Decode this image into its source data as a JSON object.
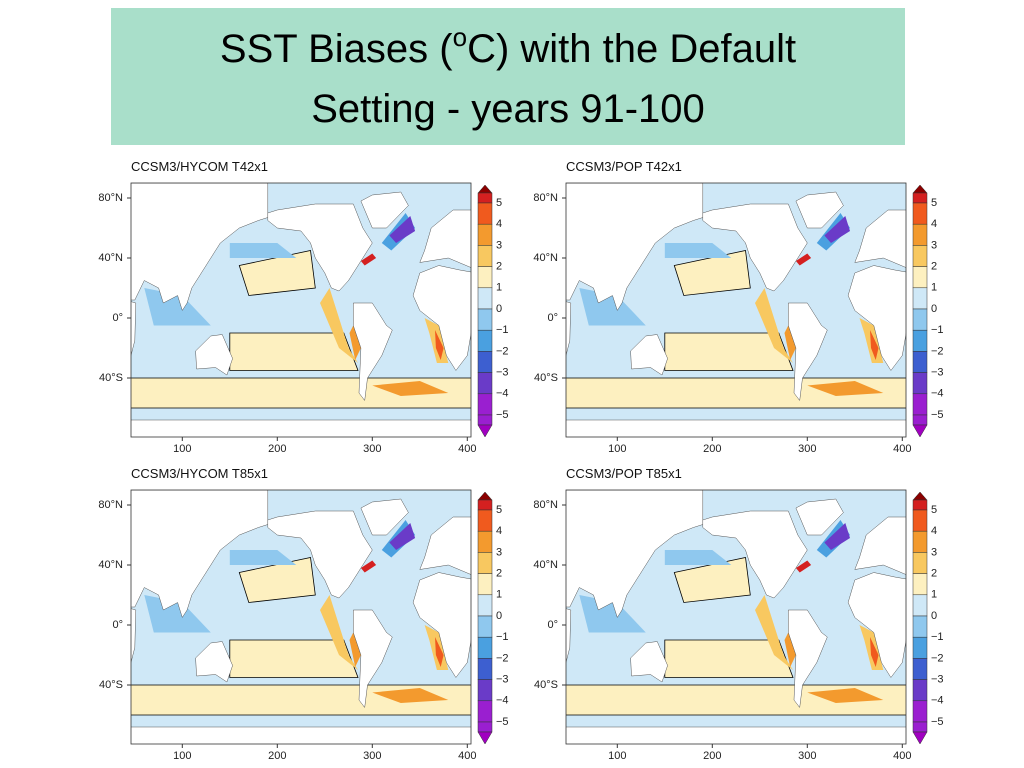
{
  "slide": {
    "title_pre": "SST Biases (",
    "title_sup": "o",
    "title_post": "C) with the Default",
    "title_line2": "Setting - years 91-100"
  },
  "panels": [
    {
      "title": "CCSM3/HYCOM   T42x1"
    },
    {
      "title": "CCSM3/POP   T42x1"
    },
    {
      "title": "CCSM3/HYCOM   T85x1"
    },
    {
      "title": "CCSM3/POP   T85x1"
    }
  ],
  "axes": {
    "y_labels": [
      "80°N",
      "40°N",
      "0°",
      "40°S"
    ],
    "x_labels": [
      "100",
      "200",
      "300",
      "400"
    ]
  },
  "colorbar_labels": [
    "5",
    "4",
    "3",
    "2",
    "1",
    "0",
    "−1",
    "−2",
    "−3",
    "−4",
    "−5"
  ]
}
